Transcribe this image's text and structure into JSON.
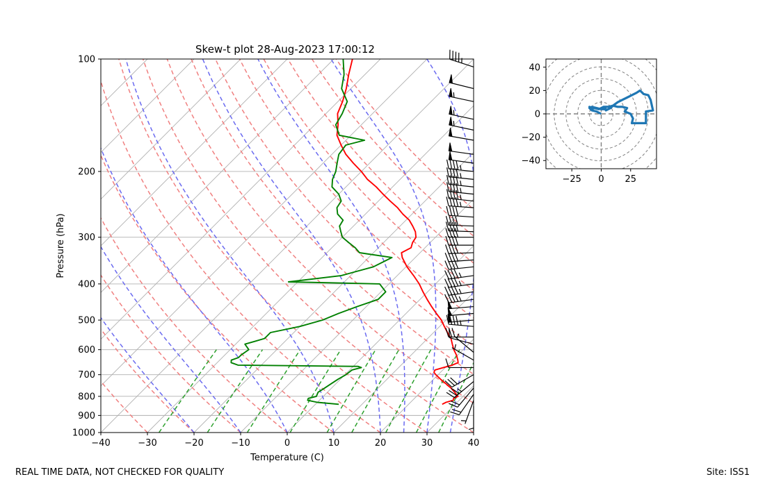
{
  "title": "Skew-t plot 28-Aug-2023 17:00:12",
  "footer_left": "REAL TIME DATA, NOT CHECKED FOR QUALITY",
  "footer_right": "Site: ISS1",
  "colors": {
    "temperature": "#ff0000",
    "dewpoint": "#008000",
    "dry_adiabat": "#f08080",
    "moist_adiabat": "#6a6af0",
    "mixing_ratio": "#2ca02c",
    "hodograph": "#1f77b4",
    "isotherm": "#b0b0b0"
  },
  "chart_data": [
    {
      "type": "line",
      "subtype": "skew-t",
      "title": "Skew-t plot 28-Aug-2023 17:00:12",
      "xlabel": "Temperature (C)",
      "ylabel": "Pressure (hPa)",
      "xlim": [
        -40,
        40
      ],
      "ylim": [
        1000,
        100
      ],
      "y_scale": "log",
      "x_ticks": [
        -40,
        -30,
        -20,
        -10,
        0,
        10,
        20,
        30,
        40
      ],
      "y_ticks": [
        100,
        200,
        300,
        400,
        500,
        600,
        700,
        800,
        900,
        1000
      ],
      "grid": true,
      "series": [
        {
          "key": "temperature",
          "p": [
            840,
            830,
            820,
            810,
            800,
            780,
            760,
            740,
            720,
            700,
            690,
            680,
            670,
            660,
            650,
            640,
            620,
            600,
            580,
            560,
            540,
            520,
            500,
            480,
            460,
            440,
            420,
            400,
            380,
            360,
            340,
            330,
            320,
            310,
            300,
            290,
            280,
            270,
            260,
            250,
            240,
            230,
            220,
            210,
            200,
            190,
            180,
            170,
            160,
            150,
            140,
            130,
            120,
            110,
            100
          ],
          "t": [
            27.2,
            27.6,
            28.7,
            28.4,
            28.9,
            27.3,
            25.6,
            23.6,
            21.5,
            19.5,
            18.6,
            18.3,
            19.6,
            21.0,
            21.7,
            21.1,
            19.7,
            18.0,
            16.5,
            15.0,
            13.0,
            11.0,
            9.0,
            6.5,
            4.0,
            1.5,
            -1.0,
            -3.5,
            -6.5,
            -9.8,
            -12.8,
            -14.0,
            -13.0,
            -13.8,
            -14.2,
            -15.5,
            -17.3,
            -19.3,
            -22.0,
            -24.5,
            -27.5,
            -30.5,
            -33.5,
            -37.0,
            -40.0,
            -43.5,
            -47.0,
            -50.0,
            -53.0,
            -55.0,
            -57.5,
            -59.0,
            -61.0,
            -63.5,
            -66.0
          ]
        },
        {
          "key": "dewpoint",
          "p": [
            840,
            830,
            820,
            810,
            800,
            780,
            760,
            740,
            720,
            700,
            680,
            670,
            665,
            660,
            650,
            640,
            630,
            620,
            600,
            580,
            570,
            560,
            540,
            520,
            500,
            480,
            460,
            440,
            420,
            400,
            395,
            380,
            360,
            340,
            330,
            320,
            310,
            300,
            290,
            280,
            270,
            260,
            250,
            240,
            230,
            220,
            210,
            200,
            190,
            180,
            170,
            165,
            160,
            150,
            140,
            130,
            120,
            110,
            100
          ],
          "t": [
            5.0,
            0.0,
            -2.5,
            -2.8,
            -1.5,
            -2.0,
            -1.5,
            -1.0,
            -0.5,
            0.2,
            0.5,
            2.0,
            1.0,
            -25.0,
            -27.0,
            -27.5,
            -26.5,
            -26.5,
            -26.0,
            -28.0,
            -26.5,
            -25.0,
            -25.0,
            -20.0,
            -16.5,
            -14.5,
            -12.0,
            -9.0,
            -9.0,
            -12.0,
            -32.0,
            -22.0,
            -17.0,
            -15.0,
            -23.0,
            -25.0,
            -27.5,
            -30.0,
            -31.5,
            -33.0,
            -33.5,
            -36.0,
            -37.5,
            -38.0,
            -40.0,
            -43.0,
            -44.5,
            -45.5,
            -47.0,
            -48.5,
            -49.0,
            -46.0,
            -52.5,
            -55.5,
            -56.5,
            -58.0,
            -62.0,
            -64.5,
            -68.0
          ]
        }
      ],
      "reference_lines": {
        "isotherms_c": [
          -120,
          -110,
          -100,
          -90,
          -80,
          -70,
          -60,
          -50,
          -40,
          -30,
          -20,
          -10,
          0,
          10,
          20,
          30,
          40
        ],
        "dry_adiabats_c": [
          -30,
          -20,
          -10,
          0,
          10,
          20,
          30,
          40,
          50,
          60,
          70,
          80,
          90,
          100,
          110,
          120
        ],
        "moist_adiabats_c": [
          -20,
          -10,
          0,
          10,
          20,
          25,
          30,
          35
        ],
        "mixing_ratios_gkg": [
          0.4,
          1,
          2,
          4,
          7,
          10,
          16,
          24,
          32
        ]
      },
      "wind_barbs": {
        "p": [
          850,
          820,
          790,
          760,
          730,
          700,
          670,
          640,
          610,
          580,
          555,
          520,
          500,
          480,
          460,
          440,
          420,
          400,
          380,
          360,
          345,
          330,
          315,
          300,
          290,
          280,
          265,
          250,
          240,
          230,
          220,
          210,
          200,
          190,
          180,
          165,
          155,
          145,
          130,
          120,
          105
        ],
        "speed_kt": [
          5,
          5,
          20,
          20,
          35,
          30,
          10,
          5,
          5,
          10,
          30,
          45,
          50,
          50,
          50,
          45,
          45,
          45,
          45,
          40,
          40,
          40,
          40,
          40,
          40,
          40,
          40,
          45,
          45,
          45,
          45,
          45,
          45,
          50,
          50,
          50,
          55,
          55,
          55,
          50,
          45
        ],
        "dir_deg": [
          180,
          200,
          215,
          220,
          230,
          240,
          270,
          300,
          310,
          285,
          270,
          275,
          265,
          265,
          265,
          262,
          262,
          262,
          262,
          264,
          266,
          268,
          270,
          270,
          272,
          272,
          274,
          274,
          276,
          276,
          276,
          276,
          276,
          278,
          278,
          280,
          282,
          282,
          282,
          284,
          288
        ]
      }
    },
    {
      "type": "line",
      "subtype": "hodograph",
      "xlim": [
        -47,
        47
      ],
      "ylim": [
        -47,
        47
      ],
      "x_ticks": [
        -25,
        0,
        25
      ],
      "y_ticks": [
        -40,
        -20,
        0,
        20,
        40
      ],
      "rings": [
        10,
        20,
        30,
        40,
        50,
        60
      ],
      "u": [
        0,
        -4,
        -8,
        -10,
        -8,
        -4,
        0,
        4,
        2,
        6,
        10,
        14,
        18,
        22,
        26,
        30,
        33,
        36,
        40,
        42,
        44,
        38,
        38,
        26,
        27,
        25,
        20,
        22,
        18,
        14,
        10,
        8,
        4,
        2,
        -2,
        -6,
        -8,
        -10,
        -8
      ],
      "v": [
        0,
        2,
        3,
        5,
        6,
        5,
        4,
        4,
        6,
        6,
        7,
        10,
        12,
        14,
        16,
        18,
        20,
        17,
        16,
        12,
        3,
        2,
        -8,
        -8,
        -4,
        0,
        2,
        5,
        6,
        6,
        7,
        5,
        3,
        6,
        4,
        5,
        4,
        6,
        5
      ]
    }
  ]
}
